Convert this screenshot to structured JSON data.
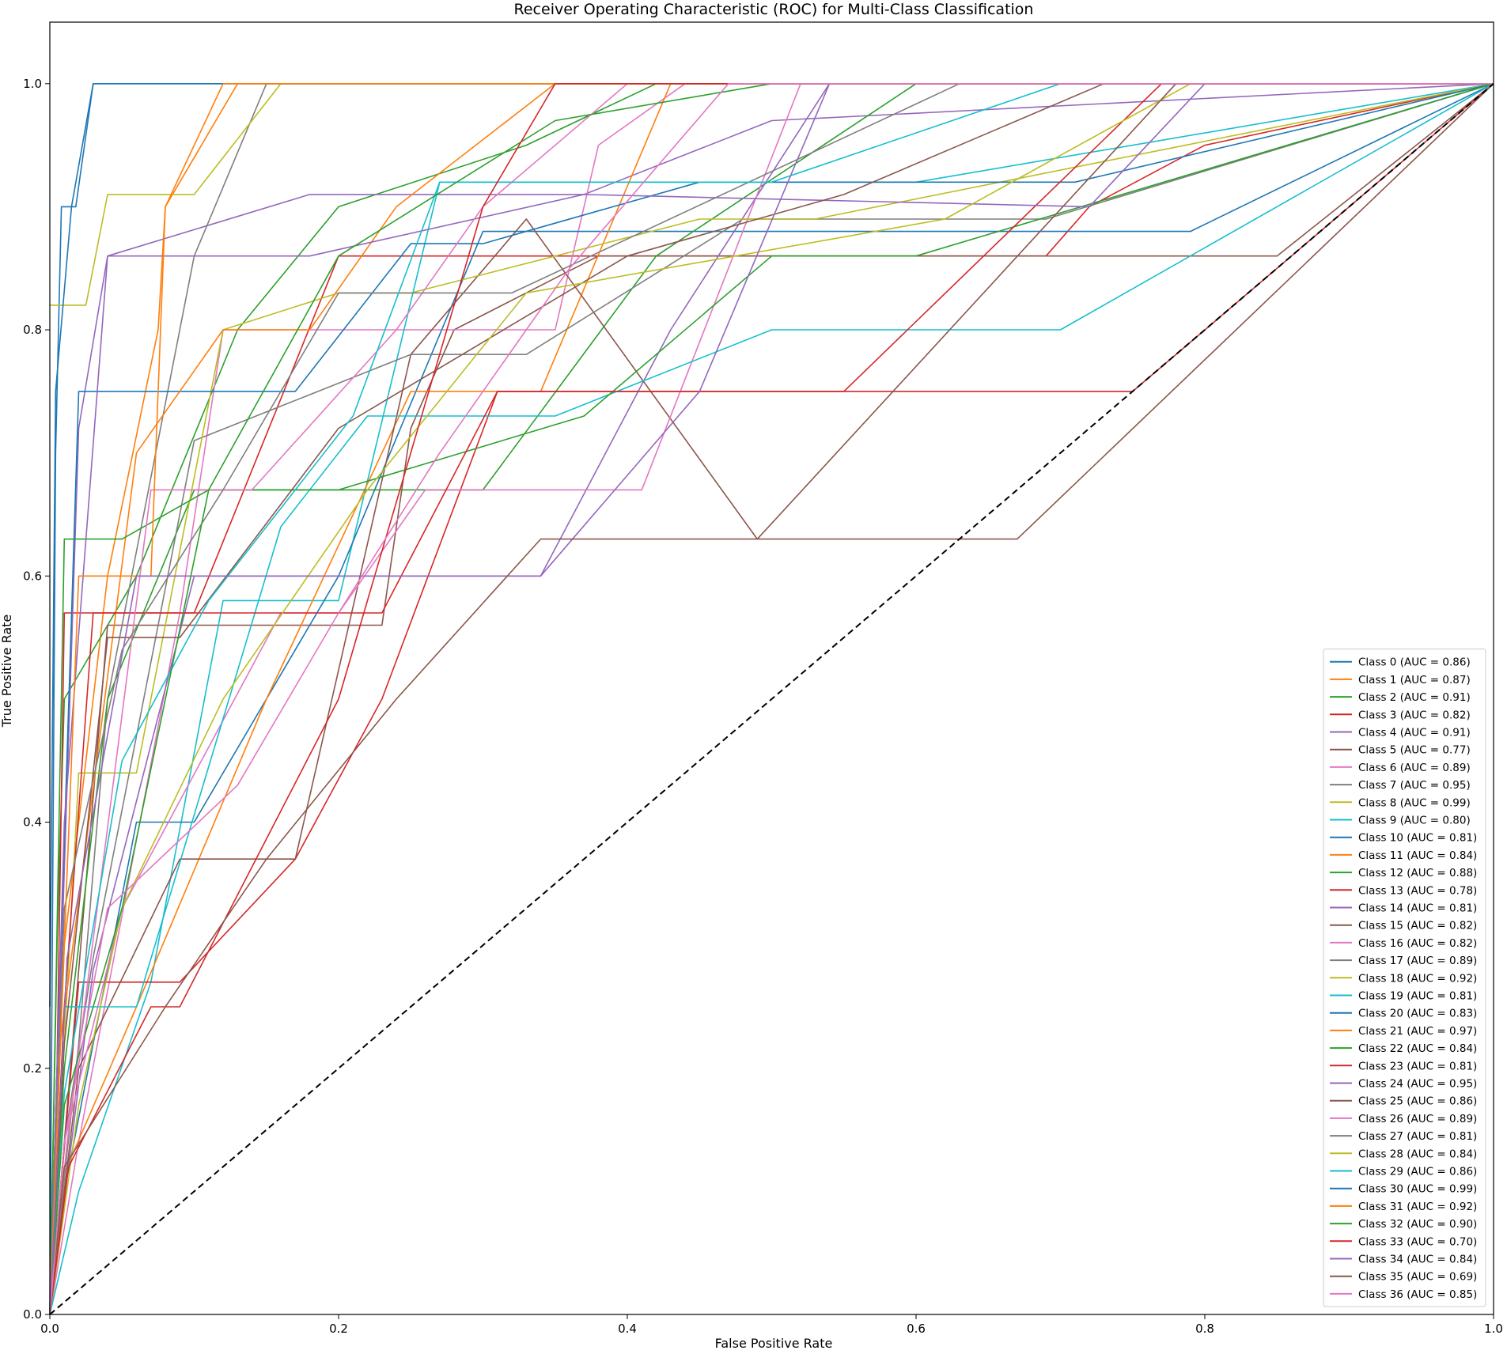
{
  "chart_data": {
    "type": "line",
    "title": "Receiver Operating Characteristic (ROC) for Multi-Class Classification",
    "xlabel": "False Positive Rate",
    "ylabel": "True Positive Rate",
    "xlim": [
      0.0,
      1.0
    ],
    "ylim": [
      0.0,
      1.05
    ],
    "xticks": [
      "0.0",
      "0.2",
      "0.4",
      "0.6",
      "0.8",
      "1.0"
    ],
    "yticks": [
      "0.0",
      "0.2",
      "0.4",
      "0.6",
      "0.8",
      "1.0"
    ],
    "grid": false,
    "legend_position": "lower-right",
    "reference_line": {
      "style": "dashed",
      "color": "#000000",
      "x": [
        0,
        1
      ],
      "y": [
        0,
        1
      ]
    },
    "series": [
      {
        "name": "Class 0 (AUC = 0.86)",
        "color": "#1f77b4",
        "x": [
          0,
          0.004,
          0.008,
          0.018,
          0.03,
          0.3,
          0.44,
          0.7,
          1
        ],
        "y": [
          0,
          0.7,
          0.9,
          0.9,
          1.0,
          1.0,
          1.0,
          1.0,
          1.0
        ]
      },
      {
        "name": "Class 1 (AUC = 0.87)",
        "color": "#ff7f0e",
        "x": [
          0,
          0.01,
          0.04,
          0.075,
          0.08,
          0.13,
          0.2,
          1
        ],
        "y": [
          0,
          0.3,
          0.6,
          0.8,
          0.9,
          1.0,
          1.0,
          1.0
        ]
      },
      {
        "name": "Class 2 (AUC = 0.91)",
        "color": "#2ca02c",
        "x": [
          0,
          0.005,
          0.01,
          0.06,
          0.13,
          0.2,
          0.33,
          0.42,
          1
        ],
        "y": [
          0,
          0.3,
          0.5,
          0.6,
          0.8,
          0.9,
          0.95,
          1.0,
          1.0
        ]
      },
      {
        "name": "Class 3 (AUC = 0.82)",
        "color": "#d62728",
        "x": [
          0,
          0.005,
          0.01,
          0.045,
          0.1,
          0.2,
          0.3,
          0.5,
          0.69,
          0.72,
          0.8,
          1
        ],
        "y": [
          0,
          0.2,
          0.57,
          0.57,
          0.57,
          0.86,
          0.86,
          0.86,
          0.86,
          0.9,
          0.95,
          1.0
        ]
      },
      {
        "name": "Class 4 (AUC = 0.91)",
        "color": "#9467bd",
        "x": [
          0,
          0.02,
          0.04,
          0.18,
          0.2,
          0.37,
          0.5,
          1
        ],
        "y": [
          0,
          0.72,
          0.86,
          0.91,
          0.91,
          0.91,
          0.97,
          1.0
        ]
      },
      {
        "name": "Class 5 (AUC = 0.77)",
        "color": "#8c564b",
        "x": [
          0,
          0.01,
          0.04,
          0.16,
          0.23,
          0.25,
          0.28,
          0.38,
          0.55,
          0.7,
          0.85,
          1
        ],
        "y": [
          0,
          0.14,
          0.56,
          0.56,
          0.56,
          0.72,
          0.8,
          0.86,
          0.86,
          0.86,
          0.86,
          1.0
        ]
      },
      {
        "name": "Class 6 (AUC = 0.89)",
        "color": "#e377c2",
        "x": [
          0,
          0.02,
          0.09,
          0.12,
          0.25,
          0.35,
          0.38,
          0.44,
          1
        ],
        "y": [
          0,
          0.14,
          0.57,
          0.8,
          0.8,
          0.8,
          0.95,
          1.0,
          1.0
        ]
      },
      {
        "name": "Class 7 (AUC = 0.95)",
        "color": "#7f7f7f",
        "x": [
          0,
          0.02,
          0.04,
          0.1,
          0.15,
          0.3,
          0.5,
          1
        ],
        "y": [
          0,
          0.22,
          0.5,
          0.86,
          1.0,
          1.0,
          1.0,
          1.0
        ]
      },
      {
        "name": "Class 8 (AUC = 0.99)",
        "color": "#bcbd22",
        "x": [
          0,
          0.025,
          0.04,
          0.1,
          0.16,
          0.3,
          1
        ],
        "y": [
          0.82,
          0.82,
          0.91,
          0.91,
          1.0,
          1.0,
          1.0
        ]
      },
      {
        "name": "Class 9 (AUC = 0.80)",
        "color": "#17becf",
        "x": [
          0,
          0.02,
          0.07,
          0.12,
          0.2,
          0.27,
          0.44,
          0.6,
          1
        ],
        "y": [
          0,
          0.1,
          0.27,
          0.58,
          0.58,
          0.92,
          0.92,
          0.92,
          1.0
        ]
      },
      {
        "name": "Class 10 (AUC = 0.81)",
        "color": "#1f77b4",
        "x": [
          0,
          0.01,
          0.06,
          0.1,
          0.2,
          0.3,
          0.5,
          0.79,
          1
        ],
        "y": [
          0,
          0.1,
          0.4,
          0.4,
          0.6,
          0.88,
          0.88,
          0.88,
          1.0
        ]
      },
      {
        "name": "Class 11 (AUC = 0.84)",
        "color": "#ff7f0e",
        "x": [
          0,
          0.012,
          0.06,
          0.15,
          0.25,
          0.34,
          0.43,
          1
        ],
        "y": [
          0,
          0.12,
          0.25,
          0.5,
          0.75,
          0.75,
          1.0,
          1.0
        ]
      },
      {
        "name": "Class 12 (AUC = 0.88)",
        "color": "#2ca02c",
        "x": [
          0,
          0.01,
          0.04,
          0.1,
          0.15,
          0.3,
          0.42,
          0.6,
          1
        ],
        "y": [
          0,
          0.2,
          0.5,
          0.67,
          0.67,
          0.67,
          0.86,
          1.0,
          1.0
        ]
      },
      {
        "name": "Class 13 (AUC = 0.78)",
        "color": "#d62728",
        "x": [
          0,
          0.02,
          0.09,
          0.17,
          0.23,
          0.31,
          0.45,
          0.75,
          1
        ],
        "y": [
          0,
          0.27,
          0.27,
          0.37,
          0.5,
          0.75,
          0.75,
          0.75,
          1.0
        ]
      },
      {
        "name": "Class 14 (AUC = 0.81)",
        "color": "#9467bd",
        "x": [
          0,
          0.03,
          0.1,
          0.2,
          0.34,
          0.43,
          0.54,
          1
        ],
        "y": [
          0,
          0.28,
          0.6,
          0.6,
          0.6,
          0.8,
          1.0,
          1.0
        ]
      },
      {
        "name": "Class 15 (AUC = 0.82)",
        "color": "#8c564b",
        "x": [
          0,
          0.02,
          0.09,
          0.15,
          0.17,
          0.25,
          0.33,
          0.49,
          0.67,
          1
        ],
        "y": [
          0,
          0.2,
          0.37,
          0.37,
          0.37,
          0.78,
          0.89,
          0.63,
          0.63,
          1.0
        ]
      },
      {
        "name": "Class 16 (AUC = 0.82)",
        "color": "#e377c2",
        "x": [
          0,
          0.01,
          0.05,
          0.16,
          0.2,
          0.26,
          0.41,
          0.52,
          1
        ],
        "y": [
          0,
          0.14,
          0.33,
          0.57,
          0.57,
          0.67,
          0.67,
          1.0,
          1.0
        ]
      },
      {
        "name": "Class 17 (AUC = 0.89)",
        "color": "#7f7f7f",
        "x": [
          0,
          0.01,
          0.03,
          0.1,
          0.25,
          0.33,
          0.48,
          0.69,
          1
        ],
        "y": [
          0,
          0.14,
          0.29,
          0.71,
          0.78,
          0.78,
          0.89,
          0.89,
          1.0
        ]
      },
      {
        "name": "Class 18 (AUC = 0.92)",
        "color": "#bcbd22",
        "x": [
          0,
          0.02,
          0.06,
          0.12,
          0.2,
          0.25,
          0.45,
          0.53,
          1
        ],
        "y": [
          0,
          0.44,
          0.44,
          0.8,
          0.83,
          0.83,
          0.89,
          0.89,
          1.0
        ]
      },
      {
        "name": "Class 19 (AUC = 0.81)",
        "color": "#17becf",
        "x": [
          0,
          0.01,
          0.06,
          0.16,
          0.22,
          0.35,
          0.5,
          0.7,
          1
        ],
        "y": [
          0,
          0.25,
          0.25,
          0.64,
          0.73,
          0.73,
          0.8,
          0.8,
          1.0
        ]
      },
      {
        "name": "Class 20 (AUC = 0.83)",
        "color": "#1f77b4",
        "x": [
          0,
          0.005,
          0.02,
          0.06,
          0.17,
          0.25,
          0.3,
          0.45,
          0.71,
          1
        ],
        "y": [
          0,
          0.2,
          0.75,
          0.75,
          0.75,
          0.87,
          0.87,
          0.92,
          0.92,
          1.0
        ]
      },
      {
        "name": "Class 21 (AUC = 0.97)",
        "color": "#ff7f0e",
        "x": [
          0,
          0.005,
          0.06,
          0.12,
          0.18,
          0.24,
          0.35,
          1
        ],
        "y": [
          0,
          0.2,
          0.7,
          0.8,
          0.8,
          0.9,
          1.0,
          1.0
        ]
      },
      {
        "name": "Class 22 (AUC = 0.84)",
        "color": "#2ca02c",
        "x": [
          0,
          0.01,
          0.05,
          0.11,
          0.2,
          0.37,
          0.5,
          0.6,
          1
        ],
        "y": [
          0,
          0.63,
          0.63,
          0.67,
          0.67,
          0.73,
          0.86,
          0.86,
          1.0
        ]
      },
      {
        "name": "Class 23 (AUC = 0.81)",
        "color": "#d62728",
        "x": [
          0,
          0.01,
          0.03,
          0.09,
          0.23,
          0.31,
          0.55,
          0.77,
          1
        ],
        "y": [
          0,
          0.25,
          0.57,
          0.57,
          0.57,
          0.75,
          0.75,
          1.0,
          1.0
        ]
      },
      {
        "name": "Class 24 (AUC = 0.95)",
        "color": "#9467bd",
        "x": [
          0,
          0.01,
          0.04,
          0.18,
          0.37,
          0.72,
          0.8,
          1
        ],
        "y": [
          0,
          0.4,
          0.86,
          0.86,
          0.91,
          0.9,
          1.0,
          1.0
        ]
      },
      {
        "name": "Class 25 (AUC = 0.86)",
        "color": "#8c564b",
        "x": [
          0,
          0.01,
          0.04,
          0.09,
          0.2,
          0.4,
          0.55,
          0.73,
          1
        ],
        "y": [
          0,
          0.22,
          0.55,
          0.55,
          0.72,
          0.86,
          0.91,
          1.0,
          1.0
        ]
      },
      {
        "name": "Class 26 (AUC = 0.89)",
        "color": "#e377c2",
        "x": [
          0,
          0.012,
          0.07,
          0.14,
          0.24,
          0.3,
          0.4,
          1
        ],
        "y": [
          0,
          0.14,
          0.67,
          0.67,
          0.8,
          0.9,
          1.0,
          1.0
        ]
      },
      {
        "name": "Class 27 (AUC = 0.81)",
        "color": "#7f7f7f",
        "x": [
          0,
          0.01,
          0.05,
          0.12,
          0.2,
          0.32,
          0.63,
          1
        ],
        "y": [
          0,
          0.33,
          0.54,
          0.67,
          0.83,
          0.83,
          1.0,
          1.0
        ]
      },
      {
        "name": "Class 28 (AUC = 0.84)",
        "color": "#bcbd22",
        "x": [
          0,
          0.02,
          0.05,
          0.12,
          0.22,
          0.33,
          0.62,
          0.79,
          1
        ],
        "y": [
          0,
          0.17,
          0.33,
          0.5,
          0.67,
          0.83,
          0.89,
          1.0,
          1.0
        ]
      },
      {
        "name": "Class 29 (AUC = 0.86)",
        "color": "#17becf",
        "x": [
          0,
          0.01,
          0.05,
          0.11,
          0.21,
          0.27,
          0.5,
          0.7,
          1
        ],
        "y": [
          0,
          0.18,
          0.45,
          0.58,
          0.73,
          0.92,
          0.92,
          1.0,
          1.0
        ]
      },
      {
        "name": "Class 30 (AUC = 0.99)",
        "color": "#1f77b4",
        "x": [
          0,
          0.004,
          0.015,
          0.03,
          0.2,
          1
        ],
        "y": [
          0.25,
          0.75,
          0.9,
          1.0,
          1.0,
          1.0
        ]
      },
      {
        "name": "Class 31 (AUC = 0.92)",
        "color": "#ff7f0e",
        "x": [
          0,
          0.02,
          0.07,
          0.08,
          0.12,
          0.3,
          0.48,
          1
        ],
        "y": [
          0,
          0.6,
          0.6,
          0.9,
          1.0,
          1.0,
          1.0,
          1.0
        ]
      },
      {
        "name": "Class 32 (AUC = 0.90)",
        "color": "#2ca02c",
        "x": [
          0,
          0.01,
          0.05,
          0.11,
          0.2,
          0.35,
          0.5,
          1
        ],
        "y": [
          0,
          0.17,
          0.33,
          0.67,
          0.86,
          0.97,
          1.0,
          1.0
        ]
      },
      {
        "name": "Class 33 (AUC = 0.70)",
        "color": "#d62728",
        "x": [
          0,
          0.013,
          0.07,
          0.09,
          0.2,
          0.3,
          0.35,
          0.75,
          1
        ],
        "y": [
          0,
          0.12,
          0.25,
          0.25,
          0.5,
          0.9,
          1.0,
          1.0,
          1.0
        ]
      },
      {
        "name": "Class 34 (AUC = 0.84)",
        "color": "#9467bd",
        "x": [
          0,
          0.012,
          0.06,
          0.1,
          0.15,
          0.34,
          0.45,
          0.54,
          1
        ],
        "y": [
          0,
          0.29,
          0.6,
          0.6,
          0.6,
          0.6,
          0.75,
          1.0,
          1.0
        ]
      },
      {
        "name": "Class 35 (AUC = 0.69)",
        "color": "#8c564b",
        "x": [
          0,
          0.01,
          0.08,
          0.15,
          0.24,
          0.34,
          0.49,
          0.78,
          1
        ],
        "y": [
          0,
          0.12,
          0.25,
          0.37,
          0.5,
          0.63,
          0.63,
          1.0,
          1.0
        ]
      },
      {
        "name": "Class 36 (AUC = 0.85)",
        "color": "#e377c2",
        "x": [
          0,
          0.01,
          0.04,
          0.13,
          0.2,
          0.27,
          0.36,
          0.47,
          1
        ],
        "y": [
          0,
          0.14,
          0.33,
          0.43,
          0.57,
          0.7,
          0.85,
          1.0,
          1.0
        ]
      }
    ]
  }
}
